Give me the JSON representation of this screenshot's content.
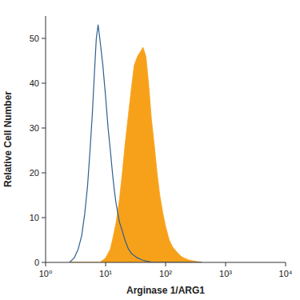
{
  "chart_data": {
    "type": "area",
    "x_label": "Arginase 1/ARG1",
    "y_label": "Relative Cell Number",
    "log": "x",
    "x": [
      2.5,
      3,
      3.5,
      4,
      4.5,
      5,
      5.5,
      6,
      6.5,
      7,
      7.5,
      8,
      9,
      10,
      11,
      12,
      13,
      14,
      15,
      17,
      19,
      21,
      24,
      27,
      30,
      34,
      38,
      42,
      47,
      52,
      58,
      65,
      72,
      80,
      90,
      100,
      115,
      130,
      150,
      175,
      200,
      250,
      300,
      400
    ],
    "series": [
      {
        "type": "area",
        "color": "#f7a11a",
        "values": [
          0,
          0,
          0,
          0,
          0,
          0,
          0,
          0,
          0,
          0,
          0,
          0,
          0.5,
          1,
          2,
          3,
          5,
          7,
          9,
          14,
          20,
          26,
          33,
          39,
          44,
          46,
          47,
          48,
          46,
          40,
          32,
          26,
          20,
          15,
          11,
          8,
          5,
          3.5,
          2.5,
          1.5,
          1,
          0.5,
          0.3,
          0
        ]
      },
      {
        "type": "line",
        "color": "#2e5f8f",
        "values": [
          0,
          1,
          3,
          6,
          11,
          17,
          25,
          33,
          42,
          50,
          53,
          50,
          44,
          37,
          30,
          25,
          20,
          16,
          13,
          9,
          7,
          5,
          3,
          2,
          1.5,
          1,
          0.7,
          0.5,
          0.3,
          0.2,
          0,
          0,
          0,
          0,
          0,
          0,
          0,
          0,
          0,
          0,
          0,
          0,
          0,
          0
        ]
      }
    ],
    "xlim": [
      1,
      10000
    ],
    "xticks": [
      {
        "value": 1,
        "label": "10⁰"
      },
      {
        "value": 10,
        "label": "10¹"
      },
      {
        "value": 100,
        "label": "10²"
      },
      {
        "value": 1000,
        "label": "10³"
      },
      {
        "value": 10000,
        "label": "10⁴"
      }
    ],
    "ylim": [
      0,
      55
    ],
    "yticks": [
      0,
      10,
      20,
      30,
      40,
      50
    ]
  }
}
